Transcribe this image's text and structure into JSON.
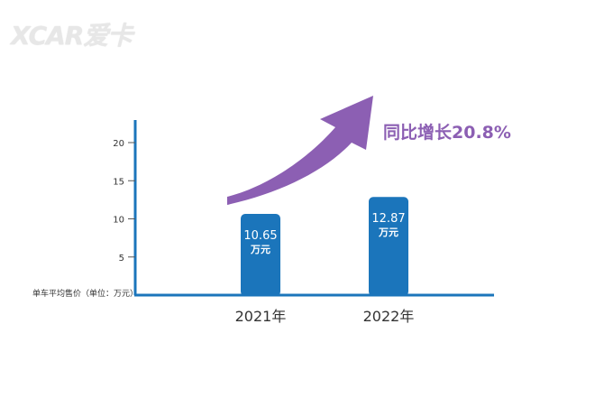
{
  "watermark": "XCAR爱卡",
  "chart_data": {
    "type": "bar",
    "categories": [
      "2021年",
      "2022年"
    ],
    "values": [
      10.65,
      12.87
    ],
    "value_labels": [
      "10.65",
      "12.87"
    ],
    "value_unit": "万元",
    "ylabel": "单车平均售价（单位：万元）",
    "yticks": [
      5,
      10,
      15,
      20
    ],
    "ylim": [
      0,
      22
    ],
    "grid": false,
    "annotation": "同比增长20.8%",
    "colors": {
      "bar": "#1b75bb",
      "axis": "#1b75bb",
      "arrow": "#8c5fb3",
      "annotation": "#8c5fb3",
      "bar_text": "#ffffff",
      "tick_text": "#333333"
    }
  }
}
